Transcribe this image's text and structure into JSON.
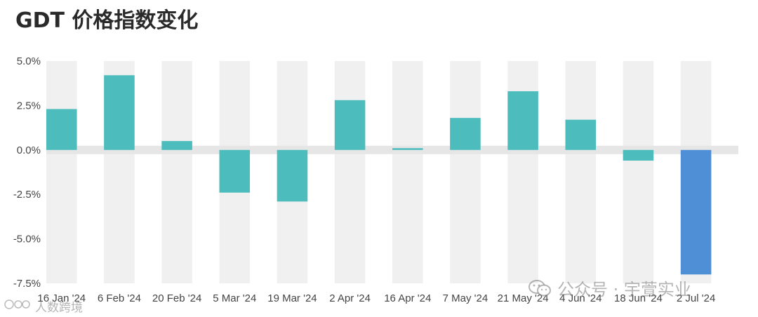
{
  "title": "GDT 价格指数变化",
  "chart_data": {
    "type": "bar",
    "categories": [
      "16 Jan '24",
      "6 Feb '24",
      "20 Feb '24",
      "5 Mar '24",
      "19 Mar '24",
      "2 Apr '24",
      "16 Apr '24",
      "7 May '24",
      "21 May '24",
      "4 Jun '24",
      "18 Jun '24",
      "2 Jul '24"
    ],
    "values": [
      2.3,
      4.2,
      0.5,
      -2.4,
      -2.9,
      2.8,
      0.1,
      1.8,
      3.3,
      1.7,
      -0.6,
      -7.0
    ],
    "ylim": [
      -7.5,
      5.0
    ],
    "yticks": [
      5.0,
      2.5,
      0.0,
      -2.5,
      -5.0,
      -7.5
    ],
    "ytick_labels": [
      "5.0%",
      "2.5%",
      "0.0%",
      "-2.5%",
      "-5.0%",
      "-7.5%"
    ],
    "colors": {
      "default": "#4cbcbd",
      "highlight": "#4f8fd6",
      "band": "#f0f0f0",
      "zero_band": "#e6e6e6"
    },
    "highlight_index": 11,
    "grid": false
  },
  "watermarks": {
    "main": "公众号 · 宇萱实业",
    "left": "人数跨境"
  }
}
